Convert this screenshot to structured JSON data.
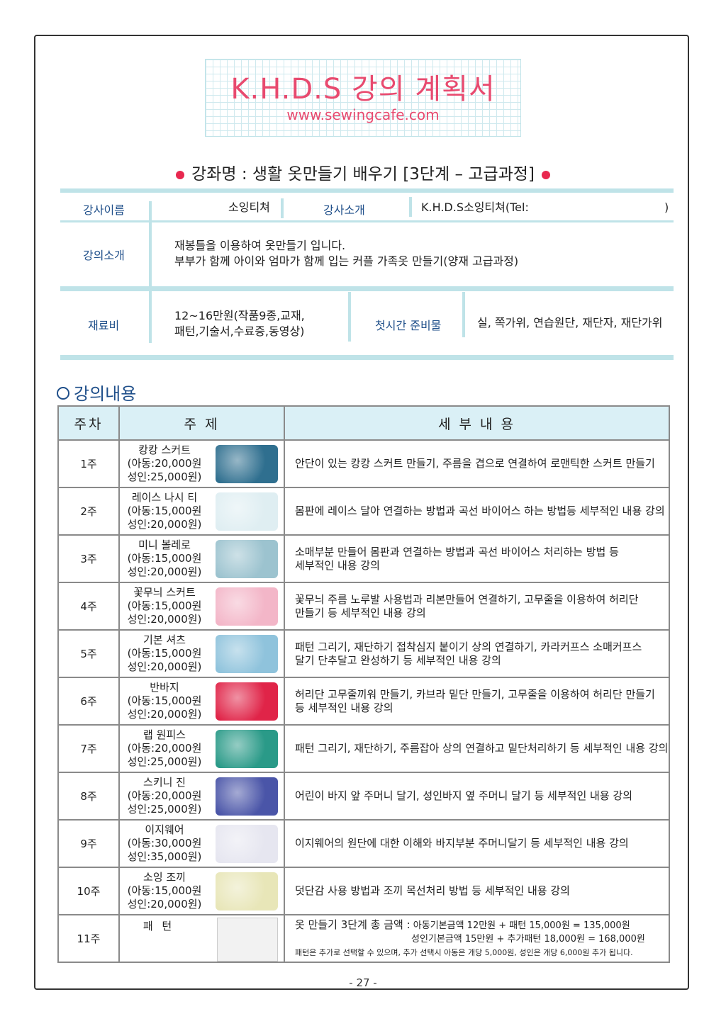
{
  "header": {
    "title": "K.H.D.S 강의 계획서",
    "url": "www.sewingcafe.com"
  },
  "course_name": "강좌명 : 생활 옷만들기 배우기 [3단계 – 고급과정]",
  "info": {
    "instructor_label": "강사이름",
    "instructor": "소잉티쳐",
    "intro_label": "강사소개",
    "intro": "K.H.D.S소잉티쳐(Tel:",
    "intro_close": ")",
    "lecture_label": "강의소개",
    "lecture_line1": "재봉틀을 이용하여 옷만들기 입니다.",
    "lecture_line2": "부부가 함께 아이와 엄마가 함께 입는 커플 가족옷 만들기(양재 고급과정)",
    "material_label": "재료비",
    "material_line1": "12~16만원(작품9종,교재,",
    "material_line2": "패턴,기술서,수료증,동영상)",
    "prep_label": "첫시간 준비물",
    "prep": "실, 쪽가위, 연습원단, 재단자, 재단가위"
  },
  "section_title": "강의내용",
  "table": {
    "headers": [
      "주차",
      "주  제",
      "세 부 내 용"
    ],
    "rows": [
      {
        "week": "1주",
        "topic": "캉캉 스커트",
        "child": "(아동:20,000원",
        "adult": "성인:25,000원)",
        "desc": [
          "안단이 있는 캉캉 스커트 만들기, 주름을 겹으로 연결하여 로맨틱한 스커트 만들기"
        ],
        "color": "#2f6f8f"
      },
      {
        "week": "2주",
        "topic": "레이스 나시 티",
        "child": "(아동:15,000원",
        "adult": "성인:20,000원)",
        "desc": [
          "몸판에 레이스 달아 연결하는 방법과 곡선 바이어스 하는 방법등 세부적인 내용 강의"
        ],
        "color": "#dfeef2"
      },
      {
        "week": "3주",
        "topic": "미니 볼레로",
        "child": "(아동:15,000원",
        "adult": "성인:20,000원)",
        "desc": [
          "소매부분 만들어 몸판과 연결하는 방법과 곡선 바이어스 처리하는 방법 등",
          "세부적인 내용 강의"
        ],
        "color": "#9cc3cf"
      },
      {
        "week": "4주",
        "topic": "꽃무늬 스커트",
        "child": "(아동:15,000원",
        "adult": "성인:20,000원)",
        "desc": [
          "꽃무늬 주름 노루발 사용법과 리본만들어 연결하기, 고무줄을 이용하여 허리단",
          "만들기 등 세부적인 내용 강의"
        ],
        "color": "#f3b6c8"
      },
      {
        "week": "5주",
        "topic": "기본 셔츠",
        "child": "(아동:15,000원",
        "adult": "성인:20,000원)",
        "desc": [
          "패턴 그리기, 재단하기 접착심지 붙이기 상의 연결하기, 카라커프스 소매커프스",
          "달기 단추달고 완성하기 등 세부적인 내용 강의"
        ],
        "color": "#8fc3dc"
      },
      {
        "week": "6주",
        "topic": "반바지",
        "child": "(아동:15,000원",
        "adult": "성인:20,000원)",
        "desc": [
          "허리단 고무줄끼워 만들기, 카브라 밑단 만들기, 고무줄을 이용하여 허리단 만들기",
          "등 세부적인 내용 강의"
        ],
        "color": "#e02448"
      },
      {
        "week": "7주",
        "topic": "랩 원피스",
        "child": "(아동:20,000원",
        "adult": "성인:25,000원)",
        "desc": [
          "패턴 그리기, 재단하기, 주름잡아 상의 연결하고 밑단처리하기 등 세부적인 내용 강의"
        ],
        "color": "#2a9a88"
      },
      {
        "week": "8주",
        "topic": "스키니 진",
        "child": "(아동:20,000원",
        "adult": "성인:25,000원)",
        "desc": [
          "어린이 바지 앞 주머니 달기, 성인바지 옆 주머니 달기 등 세부적인 내용 강의"
        ],
        "color": "#4a55a8"
      },
      {
        "week": "9주",
        "topic": "이지웨어",
        "child": "(아동:30,000원",
        "adult": "성인:35,000원)",
        "desc": [
          "이지웨어의 원단에 대한 이해와 바지부분 주머니달기 등 세부적인 내용 강의"
        ],
        "color": "#e6e6f0"
      },
      {
        "week": "10주",
        "topic": "소잉 조끼",
        "child": "(아동:15,000원",
        "adult": "성인:20,000원)",
        "desc": [
          "덧단감 사용 방법과 조끼 목선처리 방법 등 세부적인 내용 강의"
        ],
        "color": "#e8e6b8"
      }
    ],
    "last": {
      "week": "11주",
      "topic": "패  턴",
      "total_label": "옷 만들기 3단계 총 금액 :",
      "line1": "아동기본금액 12만원 + 패턴 15,000원 = 135,000원",
      "line2": "성인기본금액 15만원 + 추가패턴 18,000원 = 168,000원",
      "note": "패턴은 추가로 선택할 수 있으며, 추가 선택시 아동은 개당 5,000원, 성인은 개당 6,000원 추가 됩니다."
    }
  },
  "page_number": "- 27 -"
}
